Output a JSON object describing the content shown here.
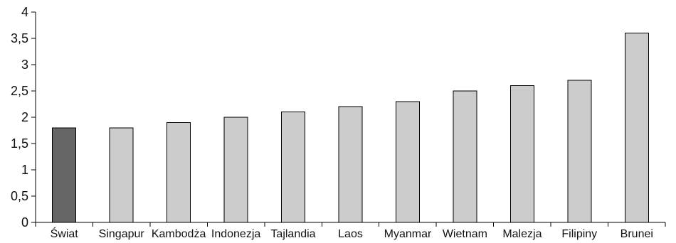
{
  "chart_data": {
    "type": "bar",
    "title": "",
    "xlabel": "",
    "ylabel": "",
    "categories": [
      "Świat",
      "Singapur",
      "Kambodża",
      "Indonezja",
      "Tajlandia",
      "Laos",
      "Myanmar",
      "Wietnam",
      "Malezja",
      "Filipiny",
      "Brunei"
    ],
    "values": [
      1.8,
      1.8,
      1.9,
      2.0,
      2.1,
      2.2,
      2.3,
      2.5,
      2.6,
      2.7,
      3.6
    ],
    "ylim": [
      0,
      4
    ],
    "yticks": [
      0,
      0.5,
      1,
      1.5,
      2,
      2.5,
      3,
      3.5,
      4
    ],
    "ytick_labels": [
      "0",
      "0,5",
      "1",
      "1,5",
      "2",
      "2,5",
      "3",
      "3,5",
      "4"
    ],
    "grid": false,
    "legend": "none",
    "colors": {
      "highlight": "#666666",
      "default": "#cccccc",
      "highlight_index": 0
    }
  }
}
